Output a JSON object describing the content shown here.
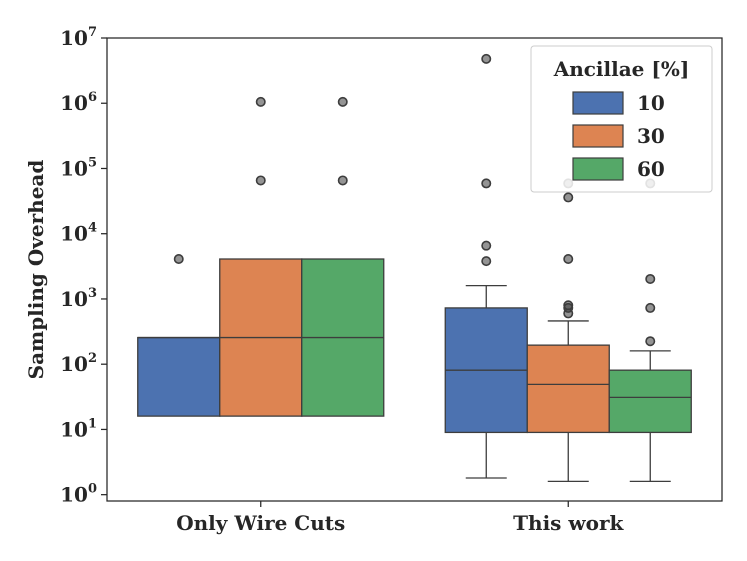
{
  "chart_data": {
    "type": "box",
    "title": "",
    "xlabel": "",
    "ylabel": "Sampling Overhead",
    "yscale": "log",
    "ylim": [
      0.8,
      10000000
    ],
    "y_ticks": [
      {
        "value": 1,
        "base": "10",
        "exp": "0"
      },
      {
        "value": 10,
        "base": "10",
        "exp": "1"
      },
      {
        "value": 100,
        "base": "10",
        "exp": "2"
      },
      {
        "value": 1000,
        "base": "10",
        "exp": "3"
      },
      {
        "value": 10000,
        "base": "10",
        "exp": "4"
      },
      {
        "value": 100000,
        "base": "10",
        "exp": "5"
      },
      {
        "value": 1000000,
        "base": "10",
        "exp": "6"
      },
      {
        "value": 10000000,
        "base": "10",
        "exp": "7"
      }
    ],
    "categories": [
      "Only Wire Cuts",
      "This work"
    ],
    "legend": {
      "title": "Ancillae [%]",
      "position": "upper right"
    },
    "series": [
      {
        "name": "10",
        "color": "#4c72b0",
        "boxes": [
          {
            "whisker_low": 16,
            "q1": 16,
            "median": 256,
            "q3": 256,
            "whisker_high": 256,
            "outliers": [
              4096
            ]
          },
          {
            "whisker_low": 1.8,
            "q1": 9,
            "median": 81,
            "q3": 729,
            "whisker_high": 1600,
            "outliers": [
              3800,
              6561,
              59049,
              4782969
            ]
          }
        ]
      },
      {
        "name": "30",
        "color": "#dd8452",
        "boxes": [
          {
            "whisker_low": 16,
            "q1": 16,
            "median": 256,
            "q3": 4096,
            "whisker_high": 4096,
            "outliers": [
              65536,
              1048576
            ]
          },
          {
            "whisker_low": 1.6,
            "q1": 9,
            "median": 49,
            "q3": 196,
            "whisker_high": 460,
            "outliers": [
              600,
              729,
              800,
              4096,
              36000,
              59049
            ]
          }
        ]
      },
      {
        "name": "60",
        "color": "#55a868",
        "boxes": [
          {
            "whisker_low": 16,
            "q1": 16,
            "median": 256,
            "q3": 4096,
            "whisker_high": 4096,
            "outliers": [
              65536,
              1048576
            ]
          },
          {
            "whisker_low": 1.6,
            "q1": 9,
            "median": 31,
            "q3": 81,
            "whisker_high": 160,
            "outliers": [
              225,
              729,
              2025,
              59049
            ]
          }
        ]
      }
    ]
  }
}
